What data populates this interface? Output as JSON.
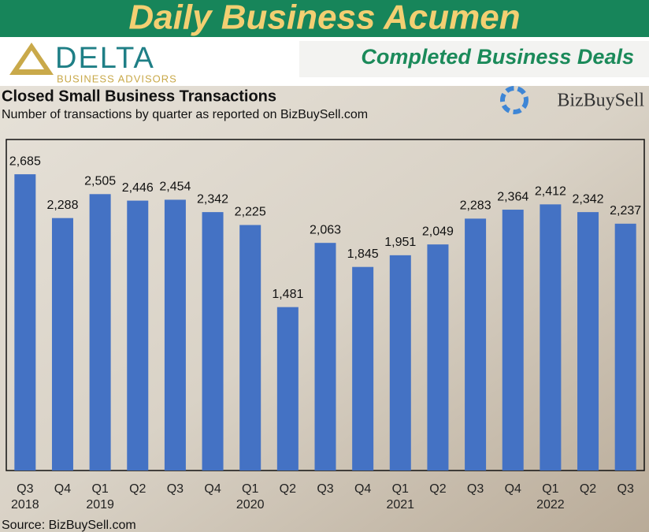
{
  "header": {
    "title": "Daily Business Acumen",
    "subtitle": "Completed Business Deals",
    "logo_name": "DELTA",
    "logo_tagline": "BUSINESS ADVISORS",
    "partner": "BizBuySell"
  },
  "chart_data": {
    "type": "bar",
    "title": "Closed Small Business Transactions",
    "subtitle": "Number of transactions by quarter as reported on BizBuySell.com",
    "source": "Source: BizBuySell.com",
    "categories": [
      "Q3",
      "Q4",
      "Q1",
      "Q2",
      "Q3",
      "Q4",
      "Q1",
      "Q2",
      "Q3",
      "Q4",
      "Q1",
      "Q2",
      "Q3",
      "Q4",
      "Q1",
      "Q2",
      "Q3"
    ],
    "x_groups": [
      {
        "label": "2018",
        "count": 2
      },
      {
        "label": "2019",
        "count": 4
      },
      {
        "label": "2020",
        "count": 4
      },
      {
        "label": "2021",
        "count": 4
      },
      {
        "label": "2022",
        "count": 3
      }
    ],
    "values": [
      2685,
      2288,
      2505,
      2446,
      2454,
      2342,
      2225,
      1481,
      2063,
      1845,
      1951,
      2049,
      2283,
      2364,
      2412,
      2342,
      2237
    ],
    "value_labels": [
      "2,685",
      "2,288",
      "2,505",
      "2,446",
      "2,454",
      "2,342",
      "2,225",
      "1,481",
      "2,063",
      "1,845",
      "1,951",
      "2,049",
      "2,283",
      "2,364",
      "2,412",
      "2,342",
      "2,237"
    ],
    "color": "#4472c4",
    "ylim": [
      0,
      3000
    ],
    "grid": false
  }
}
